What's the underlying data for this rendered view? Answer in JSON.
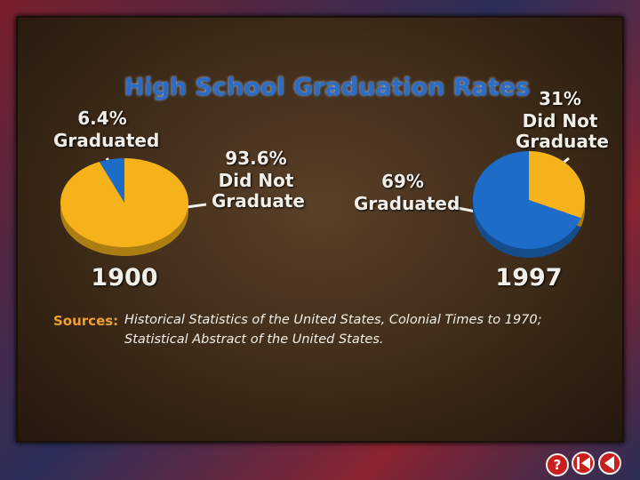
{
  "title": "High School Graduation Rates",
  "chart_data": [
    {
      "type": "pie",
      "title": "1900",
      "categories": [
        "Graduated",
        "Did Not Graduate"
      ],
      "values": [
        6.4,
        93.6
      ],
      "value_labels": [
        "6.4%",
        "93.6%"
      ],
      "colors": [
        "#1c6cc8",
        "#f6b21a"
      ]
    },
    {
      "type": "pie",
      "title": "1997",
      "categories": [
        "Graduated",
        "Did Not Graduate"
      ],
      "values": [
        69,
        31
      ],
      "value_labels": [
        "69%",
        "31%"
      ],
      "colors": [
        "#1c6cc8",
        "#f6b21a"
      ]
    }
  ],
  "sources": {
    "label": "Sources:",
    "lines": [
      "Historical Statistics of the United States, Colonial Times to 1970;",
      "Statistical Abstract of the United States."
    ]
  },
  "nav": {
    "help": "?"
  }
}
